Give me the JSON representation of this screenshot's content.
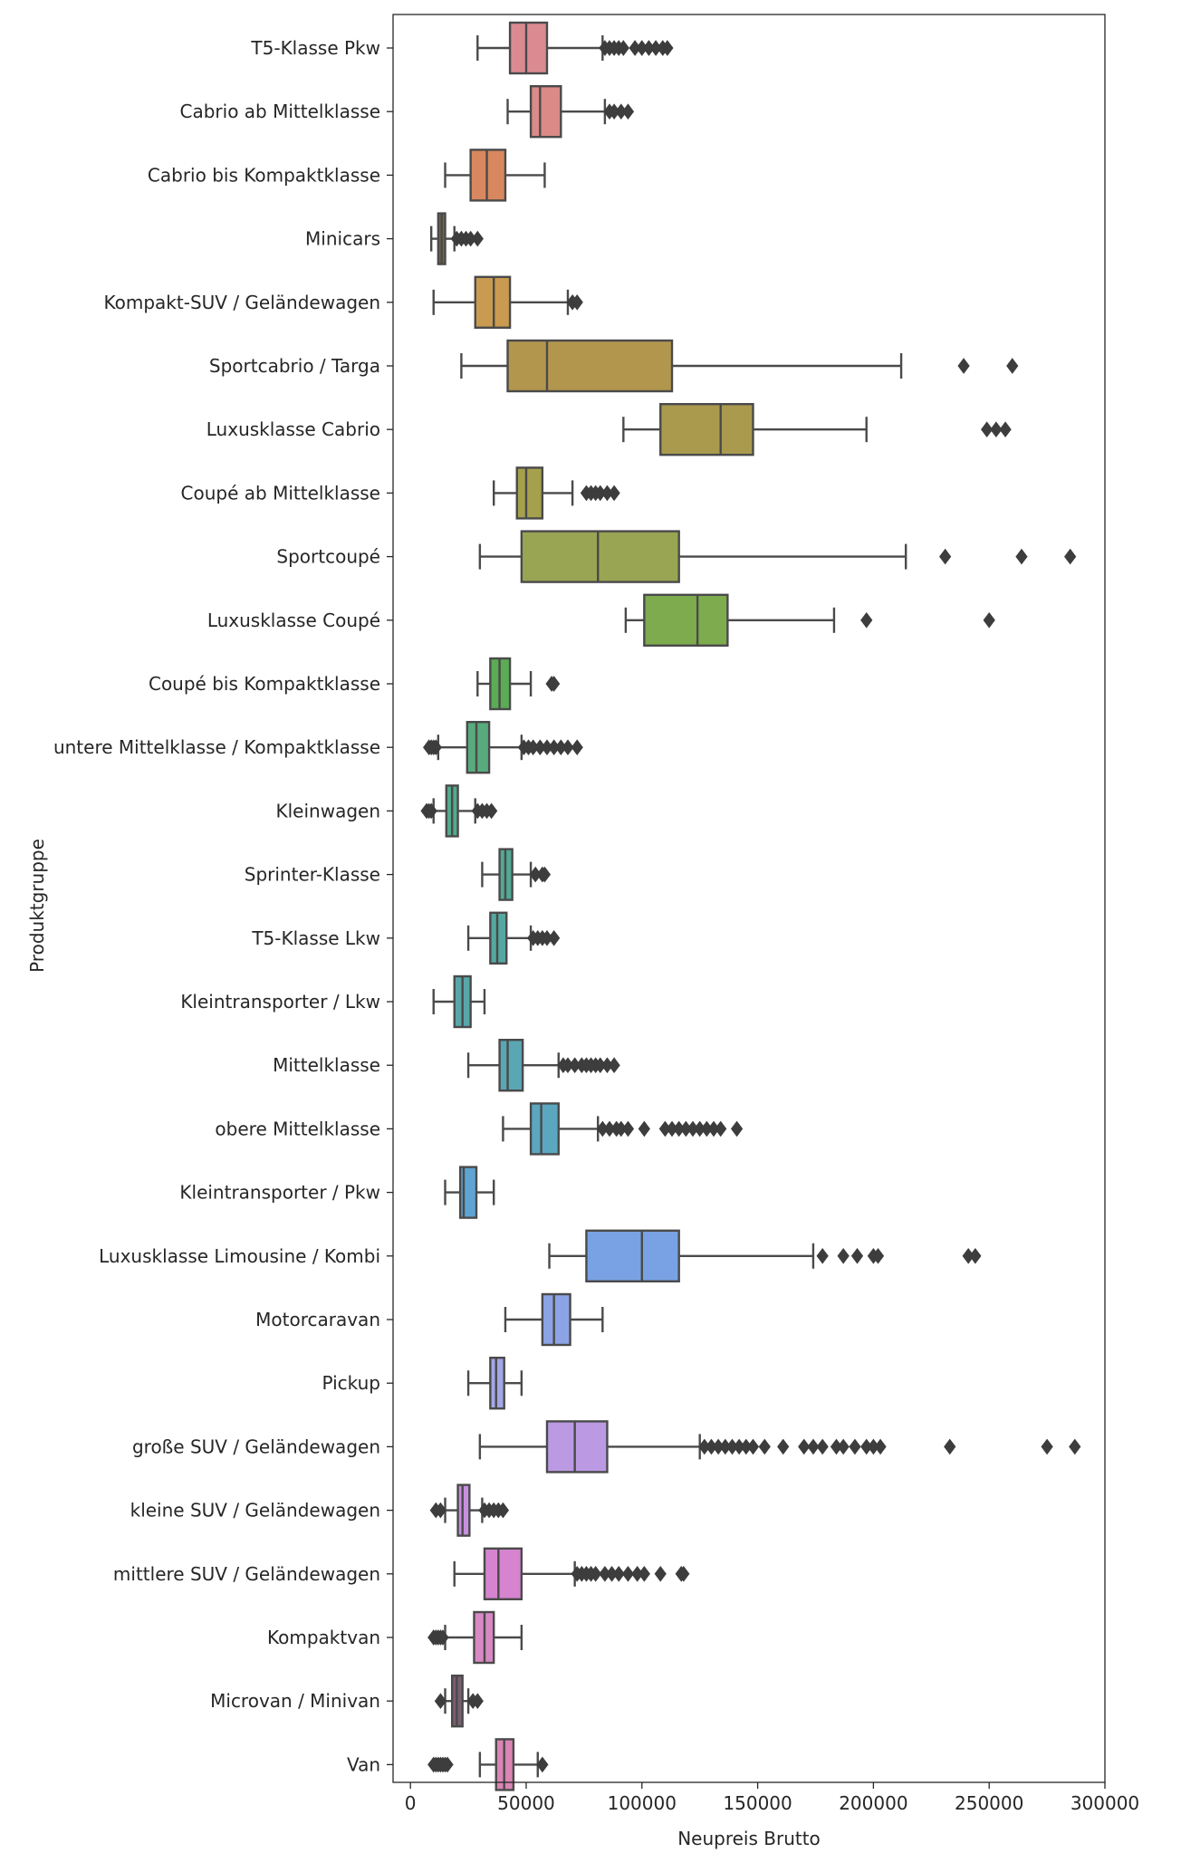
{
  "chart_data": {
    "type": "boxplot",
    "orientation": "horizontal",
    "title": "",
    "xlabel": "Neupreis Brutto",
    "ylabel": "Produktgruppe",
    "xlim": [
      -7500,
      300000
    ],
    "xticks": [
      0,
      50000,
      100000,
      150000,
      200000,
      250000,
      300000
    ],
    "xtick_labels": [
      "0",
      "50000",
      "100000",
      "150000",
      "200000",
      "250000",
      "300000"
    ],
    "grid": false,
    "series": [
      {
        "category": "T5-Klasse Pkw",
        "color": "#db8a92",
        "whisker_low": 29000,
        "q1": 43000,
        "median": 50000,
        "q3": 59000,
        "whisker_high": 83000,
        "outliers": [
          84000,
          86000,
          88000,
          90000,
          92000,
          97000,
          100000,
          103000,
          106000,
          109000,
          111000
        ]
      },
      {
        "category": "Cabrio ab Mittelklasse",
        "color": "#db8a88",
        "whisker_low": 42000,
        "q1": 52000,
        "median": 56000,
        "q3": 65000,
        "whisker_high": 84000,
        "outliers": [
          86000,
          88000,
          91000,
          94000
        ]
      },
      {
        "category": "Cabrio bis Kompaktklasse",
        "color": "#d9875e",
        "whisker_low": 15000,
        "q1": 26000,
        "median": 33000,
        "q3": 41000,
        "whisker_high": 58000,
        "outliers": []
      },
      {
        "category": "Minicars",
        "color": "#76644a",
        "whisker_low": 9000,
        "q1": 12000,
        "median": 13500,
        "q3": 15000,
        "whisker_high": 19000,
        "outliers": [
          20000,
          22000,
          24000,
          26000,
          29000
        ]
      },
      {
        "category": "Kompakt-SUV / Geländewagen",
        "color": "#c99b50",
        "whisker_low": 10000,
        "q1": 28000,
        "median": 36000,
        "q3": 43000,
        "whisker_high": 68000,
        "outliers": [
          70000,
          72000
        ]
      },
      {
        "category": "Sportcabrio / Targa",
        "color": "#b3964e",
        "whisker_low": 22000,
        "q1": 42000,
        "median": 59000,
        "q3": 113000,
        "whisker_high": 212000,
        "outliers": [
          239000,
          260000
        ]
      },
      {
        "category": "Luxusklasse Cabrio",
        "color": "#a99a4e",
        "whisker_low": 92000,
        "q1": 108000,
        "median": 134000,
        "q3": 148000,
        "whisker_high": 197000,
        "outliers": [
          249000,
          253000,
          257000
        ]
      },
      {
        "category": "Coupé ab Mittelklasse",
        "color": "#a5a04c",
        "whisker_low": 36000,
        "q1": 46000,
        "median": 50000,
        "q3": 57000,
        "whisker_high": 70000,
        "outliers": [
          76000,
          78000,
          80000,
          82000,
          85000,
          88000
        ]
      },
      {
        "category": "Sportcoupé",
        "color": "#9aa553",
        "whisker_low": 30000,
        "q1": 48000,
        "median": 81000,
        "q3": 116000,
        "whisker_high": 214000,
        "outliers": [
          231000,
          264000,
          285000
        ]
      },
      {
        "category": "Luxusklasse Coupé",
        "color": "#7eab4e",
        "whisker_low": 93000,
        "q1": 101000,
        "median": 124000,
        "q3": 137000,
        "whisker_high": 183000,
        "outliers": [
          197000,
          250000
        ]
      },
      {
        "category": "Coupé bis Kompaktklasse",
        "color": "#5bac55",
        "whisker_low": 29000,
        "q1": 34500,
        "median": 38500,
        "q3": 43000,
        "whisker_high": 52000,
        "outliers": [
          61000,
          62000
        ]
      },
      {
        "category": "untere Mittelklasse / Kompaktklasse",
        "color": "#58ab7c",
        "whisker_low": 12000,
        "q1": 24500,
        "median": 28500,
        "q3": 34000,
        "whisker_high": 48000,
        "outliers": [
          8000,
          9000,
          10000,
          11000,
          49000,
          51000,
          53000,
          56000,
          59000,
          62000,
          65000,
          68000,
          72000
        ]
      },
      {
        "category": "Kleinwagen",
        "color": "#54aa8f",
        "whisker_low": 10000,
        "q1": 15500,
        "median": 18000,
        "q3": 20500,
        "whisker_high": 28000,
        "outliers": [
          7000,
          8000,
          9000,
          29000,
          31000,
          33000,
          35000
        ]
      },
      {
        "category": "Sprinter-Klasse",
        "color": "#53a996",
        "whisker_low": 31000,
        "q1": 38500,
        "median": 41000,
        "q3": 44000,
        "whisker_high": 52000,
        "outliers": [
          54000,
          57000,
          58000
        ]
      },
      {
        "category": "T5-Klasse Lkw",
        "color": "#55a8a0",
        "whisker_low": 25000,
        "q1": 34500,
        "median": 37500,
        "q3": 41500,
        "whisker_high": 52000,
        "outliers": [
          53000,
          55000,
          57000,
          59000,
          62000
        ]
      },
      {
        "category": "Kleintransporter / Lkw",
        "color": "#57a7aa",
        "whisker_low": 10000,
        "q1": 19000,
        "median": 22500,
        "q3": 26000,
        "whisker_high": 32000,
        "outliers": []
      },
      {
        "category": "Mittelklasse",
        "color": "#5aa6b3",
        "whisker_low": 25000,
        "q1": 38500,
        "median": 42000,
        "q3": 48500,
        "whisker_high": 64000,
        "outliers": [
          66000,
          68000,
          71000,
          74000,
          76000,
          78000,
          80000,
          82000,
          85000,
          88000
        ]
      },
      {
        "category": "obere Mittelklasse",
        "color": "#5ba7c0",
        "whisker_low": 40000,
        "q1": 52000,
        "median": 56500,
        "q3": 64000,
        "whisker_high": 81000,
        "outliers": [
          83000,
          86000,
          89000,
          91000,
          94000,
          101000,
          110000,
          113000,
          116000,
          119000,
          122000,
          125000,
          128000,
          131000,
          134000,
          141000
        ]
      },
      {
        "category": "Kleintransporter / Pkw",
        "color": "#5fa4d2",
        "whisker_low": 15000,
        "q1": 21500,
        "median": 23000,
        "q3": 28500,
        "whisker_high": 36000,
        "outliers": []
      },
      {
        "category": "Luxusklasse Limousine / Kombi",
        "color": "#78a2e3",
        "whisker_low": 60000,
        "q1": 76000,
        "median": 100000,
        "q3": 116000,
        "whisker_high": 174000,
        "outliers": [
          178000,
          187000,
          193000,
          200000,
          202000,
          241000,
          244000
        ]
      },
      {
        "category": "Motorcaravan",
        "color": "#8ca3e6",
        "whisker_low": 41000,
        "q1": 57000,
        "median": 62000,
        "q3": 69000,
        "whisker_high": 83000,
        "outliers": []
      },
      {
        "category": "Pickup",
        "color": "#a4a6e8",
        "whisker_low": 25000,
        "q1": 34500,
        "median": 37000,
        "q3": 40500,
        "whisker_high": 48000,
        "outliers": []
      },
      {
        "category": "große SUV / Geländewagen",
        "color": "#bb9ae3",
        "whisker_low": 30000,
        "q1": 59000,
        "median": 71000,
        "q3": 85000,
        "whisker_high": 125000,
        "outliers": [
          127000,
          130000,
          133000,
          136000,
          139000,
          142000,
          145000,
          148000,
          153000,
          161000,
          170000,
          174000,
          178000,
          184000,
          187000,
          192000,
          197000,
          200000,
          203000,
          233000,
          275000,
          287000
        ]
      },
      {
        "category": "kleine SUV / Geländewagen",
        "color": "#c68fe0",
        "whisker_low": 15000,
        "q1": 20500,
        "median": 22500,
        "q3": 25500,
        "whisker_high": 31000,
        "outliers": [
          11000,
          13000,
          32000,
          34000,
          36000,
          38000,
          40000
        ]
      },
      {
        "category": "mittlere SUV / Geländewagen",
        "color": "#d684cf",
        "whisker_low": 19000,
        "q1": 32000,
        "median": 38000,
        "q3": 48000,
        "whisker_high": 71000,
        "outliers": [
          72000,
          74000,
          76000,
          78000,
          80000,
          84000,
          87000,
          90000,
          94000,
          98000,
          101000,
          108000,
          117000,
          118000
        ]
      },
      {
        "category": "Kompaktvan",
        "color": "#d889c4",
        "whisker_low": 15000,
        "q1": 27500,
        "median": 32000,
        "q3": 36000,
        "whisker_high": 48000,
        "outliers": [
          10000,
          11000,
          12000,
          13000,
          14000
        ]
      },
      {
        "category": "Microvan / Minivan",
        "color": "#7a5f72",
        "whisker_low": 15000,
        "q1": 18000,
        "median": 20000,
        "q3": 22500,
        "whisker_high": 25000,
        "outliers": [
          13000,
          27000,
          29000
        ]
      },
      {
        "category": "Van",
        "color": "#da85b5",
        "whisker_low": 30000,
        "q1": 37000,
        "median": 40500,
        "q3": 44500,
        "whisker_high": 55000,
        "outliers": [
          10000,
          11000,
          12000,
          13000,
          14000,
          15000,
          16000,
          57000
        ]
      }
    ]
  }
}
